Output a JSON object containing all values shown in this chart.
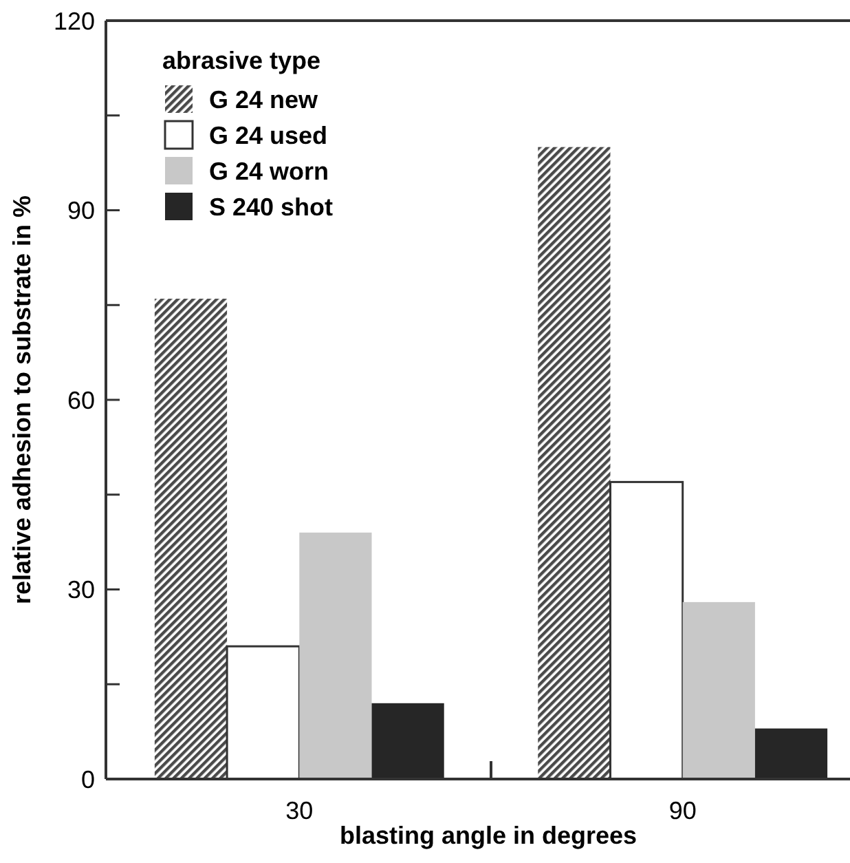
{
  "chart_data": {
    "type": "bar",
    "xlabel": "blasting angle in degrees",
    "ylabel": "relative adhesion to substrate in %",
    "legend_title": "abrasive type",
    "legend": "top left",
    "categories": [
      "30",
      "90"
    ],
    "series": [
      {
        "name": "G 24 new",
        "color": "#4a4a4a",
        "values": [
          76,
          100
        ]
      },
      {
        "name": "G 24 used",
        "color": "#ffffff",
        "values": [
          21,
          47
        ]
      },
      {
        "name": "G 24 worn",
        "color": "#c8c8c8",
        "values": [
          39,
          28
        ]
      },
      {
        "name": "S 240 shot",
        "color": "#262626",
        "values": [
          12,
          8
        ]
      }
    ],
    "ylim": [
      0,
      120
    ],
    "yticks": [
      0,
      {
        "value": 15,
        "label": null
      },
      30,
      {
        "value": 45,
        "label": null
      },
      60,
      {
        "value": 75,
        "label": null
      },
      90,
      {
        "value": 105,
        "label": null
      },
      120
    ]
  }
}
